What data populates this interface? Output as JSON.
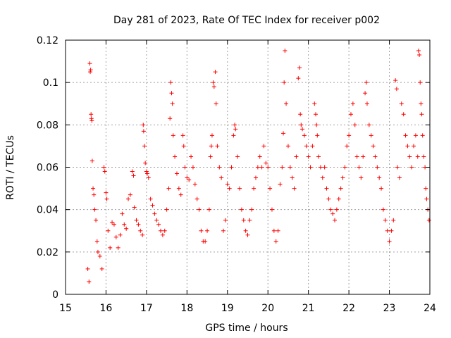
{
  "chart_data": {
    "type": "scatter",
    "title": "Day 281 of 2023, Rate Of TEC Index for receiver p002",
    "xlabel": "GPS time / hours",
    "ylabel": "ROTI / TECUs",
    "xlim": [
      15,
      24
    ],
    "ylim": [
      0,
      0.12
    ],
    "grid": true,
    "marker": "+",
    "x_ticks": [
      {
        "value": 15,
        "label": "15"
      },
      {
        "value": 16,
        "label": "16"
      },
      {
        "value": 17,
        "label": "17"
      },
      {
        "value": 18,
        "label": "18"
      },
      {
        "value": 19,
        "label": "19"
      },
      {
        "value": 20,
        "label": "20"
      },
      {
        "value": 21,
        "label": "21"
      },
      {
        "value": 22,
        "label": "22"
      },
      {
        "value": 23,
        "label": "23"
      },
      {
        "value": 24,
        "label": "24"
      }
    ],
    "y_ticks": [
      {
        "value": 0,
        "label": "0"
      },
      {
        "value": 0.02,
        "label": "0.02"
      },
      {
        "value": 0.04,
        "label": "0.04"
      },
      {
        "value": 0.06,
        "label": "0.06"
      },
      {
        "value": 0.08,
        "label": "0.08"
      },
      {
        "value": 0.1,
        "label": "0.1"
      },
      {
        "value": 0.12,
        "label": "0.12"
      }
    ],
    "series": [
      {
        "name": "ROTI",
        "color": "#ff0000",
        "points": [
          [
            15.55,
            0.012
          ],
          [
            15.58,
            0.006
          ],
          [
            15.6,
            0.109
          ],
          [
            15.61,
            0.105
          ],
          [
            15.62,
            0.106
          ],
          [
            15.63,
            0.085
          ],
          [
            15.64,
            0.083
          ],
          [
            15.65,
            0.082
          ],
          [
            15.66,
            0.063
          ],
          [
            15.68,
            0.05
          ],
          [
            15.7,
            0.047
          ],
          [
            15.72,
            0.04
          ],
          [
            15.75,
            0.035
          ],
          [
            15.78,
            0.025
          ],
          [
            15.8,
            0.02
          ],
          [
            15.85,
            0.018
          ],
          [
            15.9,
            0.012
          ],
          [
            15.95,
            0.06
          ],
          [
            15.97,
            0.058
          ],
          [
            16.0,
            0.048
          ],
          [
            16.02,
            0.045
          ],
          [
            16.05,
            0.03
          ],
          [
            16.1,
            0.022
          ],
          [
            16.15,
            0.034
          ],
          [
            16.2,
            0.033
          ],
          [
            16.25,
            0.027
          ],
          [
            16.3,
            0.022
          ],
          [
            16.35,
            0.028
          ],
          [
            16.4,
            0.038
          ],
          [
            16.45,
            0.033
          ],
          [
            16.5,
            0.031
          ],
          [
            16.55,
            0.045
          ],
          [
            16.6,
            0.047
          ],
          [
            16.65,
            0.058
          ],
          [
            16.68,
            0.056
          ],
          [
            16.7,
            0.041
          ],
          [
            16.75,
            0.035
          ],
          [
            16.8,
            0.033
          ],
          [
            16.85,
            0.03
          ],
          [
            16.9,
            0.028
          ],
          [
            16.92,
            0.08
          ],
          [
            16.93,
            0.077
          ],
          [
            16.95,
            0.07
          ],
          [
            16.97,
            0.062
          ],
          [
            17.0,
            0.058
          ],
          [
            17.02,
            0.057
          ],
          [
            17.05,
            0.055
          ],
          [
            17.1,
            0.045
          ],
          [
            17.15,
            0.042
          ],
          [
            17.2,
            0.038
          ],
          [
            17.25,
            0.035
          ],
          [
            17.3,
            0.033
          ],
          [
            17.35,
            0.03
          ],
          [
            17.4,
            0.028
          ],
          [
            17.45,
            0.03
          ],
          [
            17.5,
            0.04
          ],
          [
            17.55,
            0.05
          ],
          [
            17.58,
            0.083
          ],
          [
            17.6,
            0.1
          ],
          [
            17.62,
            0.095
          ],
          [
            17.64,
            0.09
          ],
          [
            17.66,
            0.075
          ],
          [
            17.7,
            0.065
          ],
          [
            17.75,
            0.057
          ],
          [
            17.8,
            0.05
          ],
          [
            17.85,
            0.047
          ],
          [
            17.9,
            0.075
          ],
          [
            17.92,
            0.07
          ],
          [
            17.95,
            0.06
          ],
          [
            18.0,
            0.055
          ],
          [
            18.05,
            0.054
          ],
          [
            18.1,
            0.065
          ],
          [
            18.15,
            0.06
          ],
          [
            18.2,
            0.052
          ],
          [
            18.25,
            0.045
          ],
          [
            18.3,
            0.04
          ],
          [
            18.35,
            0.03
          ],
          [
            18.4,
            0.025
          ],
          [
            18.45,
            0.025
          ],
          [
            18.5,
            0.03
          ],
          [
            18.55,
            0.04
          ],
          [
            18.58,
            0.065
          ],
          [
            18.6,
            0.07
          ],
          [
            18.62,
            0.075
          ],
          [
            18.65,
            0.1
          ],
          [
            18.67,
            0.098
          ],
          [
            18.7,
            0.105
          ],
          [
            18.72,
            0.09
          ],
          [
            18.75,
            0.07
          ],
          [
            18.8,
            0.06
          ],
          [
            18.85,
            0.055
          ],
          [
            18.9,
            0.03
          ],
          [
            18.95,
            0.035
          ],
          [
            19.0,
            0.052
          ],
          [
            19.05,
            0.05
          ],
          [
            19.1,
            0.06
          ],
          [
            19.15,
            0.075
          ],
          [
            19.18,
            0.08
          ],
          [
            19.2,
            0.078
          ],
          [
            19.25,
            0.065
          ],
          [
            19.3,
            0.05
          ],
          [
            19.35,
            0.04
          ],
          [
            19.4,
            0.035
          ],
          [
            19.45,
            0.03
          ],
          [
            19.5,
            0.028
          ],
          [
            19.55,
            0.035
          ],
          [
            19.6,
            0.04
          ],
          [
            19.65,
            0.05
          ],
          [
            19.7,
            0.055
          ],
          [
            19.75,
            0.06
          ],
          [
            19.8,
            0.065
          ],
          [
            19.85,
            0.06
          ],
          [
            19.9,
            0.07
          ],
          [
            19.95,
            0.062
          ],
          [
            20.0,
            0.06
          ],
          [
            20.05,
            0.05
          ],
          [
            20.1,
            0.04
          ],
          [
            20.15,
            0.03
          ],
          [
            20.2,
            0.025
          ],
          [
            20.25,
            0.03
          ],
          [
            20.3,
            0.052
          ],
          [
            20.35,
            0.06
          ],
          [
            20.38,
            0.076
          ],
          [
            20.4,
            0.1
          ],
          [
            20.42,
            0.115
          ],
          [
            20.45,
            0.09
          ],
          [
            20.5,
            0.07
          ],
          [
            20.55,
            0.06
          ],
          [
            20.6,
            0.055
          ],
          [
            20.65,
            0.05
          ],
          [
            20.7,
            0.065
          ],
          [
            20.75,
            0.102
          ],
          [
            20.78,
            0.107
          ],
          [
            20.8,
            0.085
          ],
          [
            20.82,
            0.08
          ],
          [
            20.85,
            0.078
          ],
          [
            20.9,
            0.075
          ],
          [
            20.95,
            0.07
          ],
          [
            21.0,
            0.065
          ],
          [
            21.05,
            0.06
          ],
          [
            21.1,
            0.07
          ],
          [
            21.15,
            0.09
          ],
          [
            21.18,
            0.085
          ],
          [
            21.2,
            0.08
          ],
          [
            21.22,
            0.075
          ],
          [
            21.25,
            0.065
          ],
          [
            21.3,
            0.06
          ],
          [
            21.35,
            0.055
          ],
          [
            21.4,
            0.06
          ],
          [
            21.45,
            0.05
          ],
          [
            21.5,
            0.045
          ],
          [
            21.55,
            0.04
          ],
          [
            21.6,
            0.038
          ],
          [
            21.65,
            0.035
          ],
          [
            21.7,
            0.04
          ],
          [
            21.75,
            0.045
          ],
          [
            21.8,
            0.05
          ],
          [
            21.85,
            0.055
          ],
          [
            21.9,
            0.06
          ],
          [
            21.95,
            0.07
          ],
          [
            22.0,
            0.075
          ],
          [
            22.05,
            0.085
          ],
          [
            22.1,
            0.09
          ],
          [
            22.15,
            0.08
          ],
          [
            22.2,
            0.065
          ],
          [
            22.25,
            0.06
          ],
          [
            22.3,
            0.055
          ],
          [
            22.35,
            0.065
          ],
          [
            22.4,
            0.095
          ],
          [
            22.43,
            0.1
          ],
          [
            22.45,
            0.09
          ],
          [
            22.5,
            0.08
          ],
          [
            22.55,
            0.075
          ],
          [
            22.6,
            0.07
          ],
          [
            22.65,
            0.065
          ],
          [
            22.7,
            0.06
          ],
          [
            22.75,
            0.055
          ],
          [
            22.8,
            0.05
          ],
          [
            22.85,
            0.04
          ],
          [
            22.9,
            0.035
          ],
          [
            22.95,
            0.03
          ],
          [
            23.0,
            0.025
          ],
          [
            23.05,
            0.03
          ],
          [
            23.1,
            0.035
          ],
          [
            23.15,
            0.101
          ],
          [
            23.18,
            0.097
          ],
          [
            23.2,
            0.06
          ],
          [
            23.25,
            0.055
          ],
          [
            23.3,
            0.09
          ],
          [
            23.35,
            0.085
          ],
          [
            23.4,
            0.075
          ],
          [
            23.45,
            0.07
          ],
          [
            23.5,
            0.065
          ],
          [
            23.55,
            0.06
          ],
          [
            23.6,
            0.07
          ],
          [
            23.65,
            0.075
          ],
          [
            23.7,
            0.065
          ],
          [
            23.72,
            0.115
          ],
          [
            23.74,
            0.113
          ],
          [
            23.76,
            0.1
          ],
          [
            23.78,
            0.09
          ],
          [
            23.8,
            0.085
          ],
          [
            23.82,
            0.075
          ],
          [
            23.85,
            0.065
          ],
          [
            23.88,
            0.06
          ],
          [
            23.9,
            0.05
          ],
          [
            23.92,
            0.045
          ],
          [
            23.95,
            0.04
          ],
          [
            23.98,
            0.035
          ]
        ]
      }
    ]
  }
}
